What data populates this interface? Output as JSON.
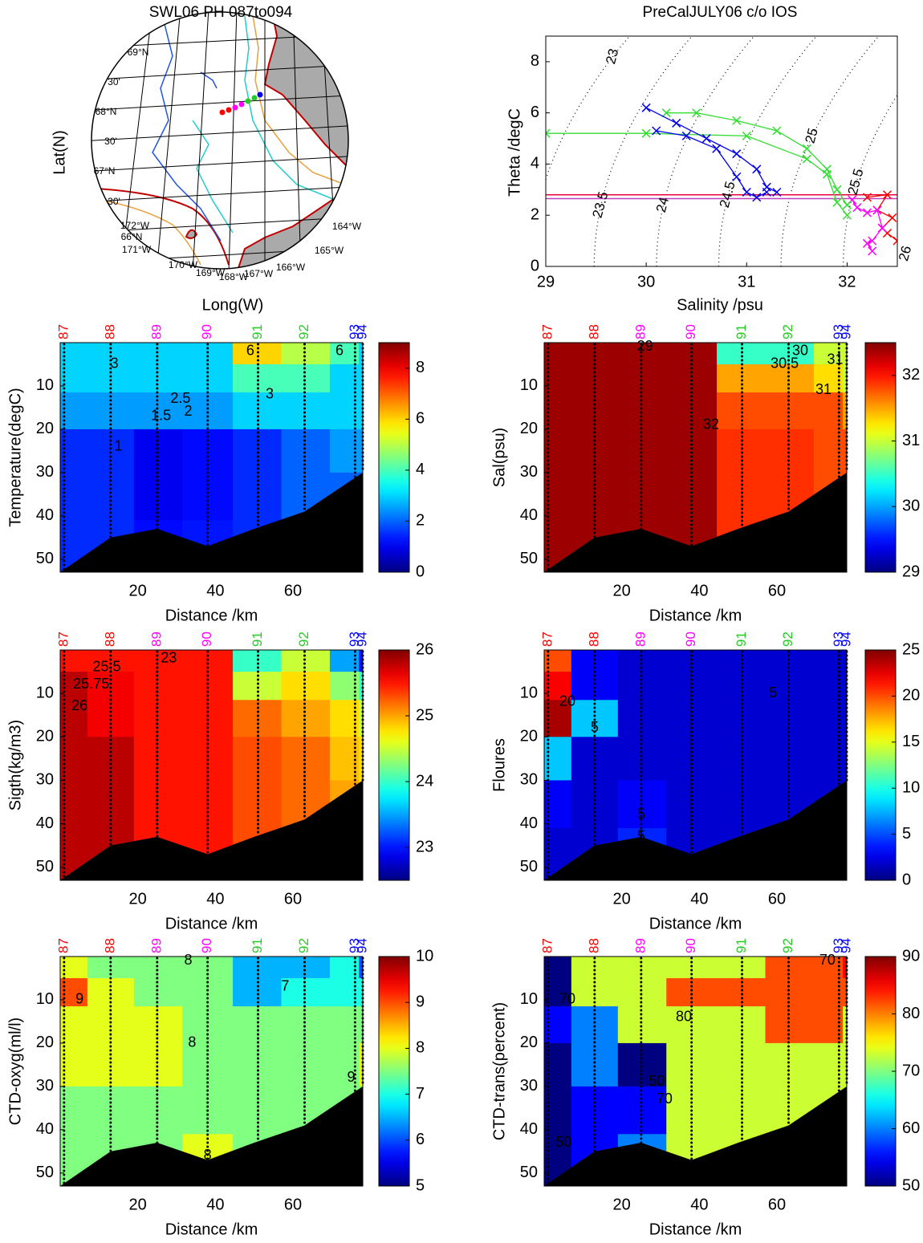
{
  "chart_data": [
    {
      "type": "map",
      "title": "SWL06 PH 087to094",
      "xlabel": "Long(W)",
      "ylabel": "Lat(N)",
      "lat_labels": [
        "69°N",
        "30'",
        "68°N",
        "30'",
        "67°N",
        "30'",
        "66°N"
      ],
      "lon_labels": [
        "172°W",
        "171°W",
        "170°W",
        "169°W",
        "168°W",
        "167°W",
        "166°W",
        "165°W",
        "164°W"
      ]
    },
    {
      "type": "line",
      "title": "PreCalJULY06 c/o IOS",
      "xlabel": "Salinity /psu",
      "ylabel": "Theta /degC",
      "xlim": [
        29,
        32.5
      ],
      "ylim": [
        0,
        9
      ],
      "xticks": [
        29,
        30,
        31,
        32
      ],
      "yticks": [
        0,
        2,
        4,
        6,
        8
      ],
      "isopycnals": [
        23,
        23.5,
        24,
        24.5,
        25,
        25.5,
        26
      ],
      "hlines": [
        {
          "y": 2.8,
          "color": "#e8003c"
        },
        {
          "y": 2.65,
          "color": "#c040c0"
        }
      ],
      "series": [
        {
          "color": "#ff0000",
          "x": [
            32.2,
            32.4,
            32.3,
            32.45,
            32.35,
            32.4,
            32.5
          ],
          "y": [
            2.7,
            2.8,
            2.2,
            1.9,
            1.5,
            1.3,
            1.0
          ]
        },
        {
          "color": "#ff00ff",
          "x": [
            32.05,
            32.1,
            32.2,
            32.3,
            32.35,
            32.25,
            32.2,
            32.25
          ],
          "y": [
            2.6,
            2.3,
            2.1,
            2.2,
            1.5,
            1.0,
            0.9,
            0.6
          ]
        },
        {
          "color": "#33dd33",
          "x": [
            29.0,
            30.0,
            31.0,
            31.6,
            31.8,
            31.9,
            32.0
          ],
          "y": [
            5.2,
            5.2,
            5.1,
            4.2,
            3.6,
            2.5,
            2.0
          ]
        },
        {
          "color": "#33dd33",
          "x": [
            30.2,
            30.5,
            30.9,
            31.3,
            31.6,
            31.8,
            31.9,
            32.0
          ],
          "y": [
            6.0,
            6.0,
            5.7,
            5.3,
            4.6,
            3.8,
            3.0,
            2.4
          ]
        },
        {
          "color": "#0000ee",
          "x": [
            30.0,
            30.3,
            30.6,
            30.9,
            31.1,
            31.2,
            31.3
          ],
          "y": [
            6.2,
            5.6,
            5.0,
            4.4,
            3.8,
            3.1,
            2.9
          ]
        },
        {
          "color": "#0000ee",
          "x": [
            30.1,
            30.4,
            30.7,
            30.9,
            31.0,
            31.1,
            31.2
          ],
          "y": [
            5.3,
            5.1,
            4.6,
            3.5,
            2.9,
            2.7,
            2.9
          ]
        }
      ]
    },
    {
      "type": "contour",
      "ylabel": "Temperature(degC)",
      "xlabel": "Distance /km",
      "xlim": [
        0,
        78
      ],
      "ylim": [
        53,
        0
      ],
      "xticks": [
        20,
        40,
        60
      ],
      "yticks": [
        10,
        20,
        30,
        40,
        50
      ],
      "stations": {
        "labels": [
          "87",
          "88",
          "89",
          "90",
          "91",
          "92",
          "93",
          "94"
        ],
        "colors": [
          "#ff0000",
          "#ff0000",
          "#ff00ff",
          "#ff00ff",
          "#22cc22",
          "#22cc22",
          "#0000ff",
          "#0000ff"
        ],
        "x": [
          1,
          13,
          25,
          38,
          51,
          63,
          76,
          78
        ]
      },
      "depths": [
        2,
        8,
        15,
        25,
        35,
        47
      ],
      "values": [
        [
          3,
          3,
          3,
          3,
          6,
          5,
          4,
          3
        ],
        [
          3,
          3,
          3,
          3,
          4,
          4,
          3,
          3
        ],
        [
          2.5,
          2.5,
          2.5,
          2.5,
          3,
          3,
          3,
          3
        ],
        [
          1.5,
          1.5,
          1,
          1.2,
          1.5,
          2,
          2.5,
          2.5
        ],
        [
          1.5,
          1.5,
          1,
          1.2,
          1.5,
          2,
          2,
          2
        ],
        [
          1.5,
          1.5,
          1.2,
          1.3,
          1.5,
          1.8,
          2,
          2
        ]
      ],
      "clim": [
        0,
        9
      ],
      "cticks": [
        0,
        2,
        4,
        6,
        8
      ],
      "contour_labels": [
        {
          "value": 6,
          "x": 49,
          "depth": 2
        },
        {
          "value": 3,
          "x": 14,
          "depth": 5
        },
        {
          "value": 2.5,
          "x": 31,
          "depth": 13
        },
        {
          "value": 2,
          "x": 33,
          "depth": 16
        },
        {
          "value": 1.5,
          "x": 26,
          "depth": 17
        },
        {
          "value": 1,
          "x": 15,
          "depth": 24
        },
        {
          "value": 3,
          "x": 54,
          "depth": 12
        },
        {
          "value": 6,
          "x": 72,
          "depth": 2
        }
      ],
      "bottom": {
        "x": [
          0,
          13,
          25,
          38,
          50,
          63,
          78
        ],
        "depth": [
          53,
          45,
          43,
          47,
          43,
          39,
          30
        ]
      }
    },
    {
      "type": "contour",
      "ylabel": "Sal(psu)",
      "xlabel": "Distance /km",
      "xlim": [
        0,
        78
      ],
      "ylim": [
        53,
        0
      ],
      "xticks": [
        20,
        40,
        60
      ],
      "yticks": [
        10,
        20,
        30,
        40,
        50
      ],
      "stations": {
        "labels": [
          "87",
          "88",
          "89",
          "90",
          "91",
          "92",
          "93",
          "94"
        ],
        "colors": [
          "#ff0000",
          "#ff0000",
          "#ff00ff",
          "#ff00ff",
          "#22cc22",
          "#22cc22",
          "#0000ff",
          "#0000ff"
        ],
        "x": [
          1,
          13,
          25,
          38,
          51,
          63,
          76,
          78
        ]
      },
      "depths": [
        2,
        8,
        15,
        25,
        35,
        47
      ],
      "values": [
        [
          32.4,
          32.4,
          32.4,
          32.4,
          30.5,
          30.5,
          31,
          31
        ],
        [
          32.4,
          32.4,
          32.4,
          32.4,
          31.5,
          31.5,
          31.3,
          31
        ],
        [
          32.4,
          32.4,
          32.4,
          32.4,
          31.8,
          31.8,
          31.8,
          31.5
        ],
        [
          32.4,
          32.4,
          32.4,
          32.4,
          31.9,
          31.9,
          31.8,
          31.8
        ],
        [
          32.4,
          32.4,
          32.4,
          32.4,
          31.9,
          31.9,
          31.8,
          31.8
        ],
        [
          32.4,
          32.4,
          32.4,
          32.4,
          31.9,
          31.9,
          31.8,
          31.8
        ]
      ],
      "clim": [
        29,
        32.5
      ],
      "cticks": [
        29,
        30,
        31,
        32
      ],
      "contour_labels": [
        {
          "value": 29,
          "x": 26,
          "depth": 1
        },
        {
          "value": 30,
          "x": 66,
          "depth": 2
        },
        {
          "value": 30.5,
          "x": 62,
          "depth": 5
        },
        {
          "value": 31,
          "x": 75,
          "depth": 4
        },
        {
          "value": 31,
          "x": 72,
          "depth": 11
        },
        {
          "value": 32,
          "x": 43,
          "depth": 19
        }
      ],
      "bottom": {
        "x": [
          0,
          13,
          25,
          38,
          50,
          63,
          78
        ],
        "depth": [
          53,
          45,
          43,
          47,
          43,
          39,
          30
        ]
      }
    },
    {
      "type": "contour",
      "ylabel": "Sigth(kg/m3)",
      "xlabel": "Distance /km",
      "xlim": [
        0,
        78
      ],
      "ylim": [
        53,
        0
      ],
      "xticks": [
        20,
        40,
        60
      ],
      "yticks": [
        10,
        20,
        30,
        40,
        50
      ],
      "stations": {
        "labels": [
          "87",
          "88",
          "89",
          "90",
          "91",
          "92",
          "93",
          "94"
        ],
        "colors": [
          "#ff0000",
          "#ff0000",
          "#ff00ff",
          "#ff00ff",
          "#22cc22",
          "#22cc22",
          "#0000ff",
          "#0000ff"
        ],
        "x": [
          1,
          13,
          25,
          38,
          51,
          63,
          76,
          78
        ]
      },
      "depths": [
        2,
        8,
        15,
        25,
        35,
        47
      ],
      "values": [
        [
          25.5,
          25.5,
          25.5,
          25.5,
          24,
          24.5,
          23.5,
          23
        ],
        [
          25.8,
          25.6,
          25.5,
          25.5,
          24.5,
          24.8,
          24.3,
          24
        ],
        [
          25.8,
          25.6,
          25.5,
          25.5,
          25.2,
          25,
          24.8,
          24.5
        ],
        [
          25.8,
          25.8,
          25.5,
          25.5,
          25.3,
          25.2,
          24.9,
          24.8
        ],
        [
          25.8,
          25.8,
          25.5,
          25.5,
          25.3,
          25.2,
          25,
          24.8
        ],
        [
          25.8,
          25.8,
          25.5,
          25.5,
          25.3,
          25.2,
          25,
          24.8
        ]
      ],
      "clim": [
        22.5,
        26
      ],
      "cticks": [
        23,
        24,
        25,
        26
      ],
      "contour_labels": [
        {
          "value": 25.5,
          "x": 12,
          "depth": 4
        },
        {
          "value": 23,
          "x": 28,
          "depth": 2
        },
        {
          "value": 25.75,
          "x": 8,
          "depth": 8
        },
        {
          "value": 26,
          "x": 5,
          "depth": 13
        }
      ],
      "bottom": {
        "x": [
          0,
          13,
          25,
          38,
          50,
          63,
          78
        ],
        "depth": [
          53,
          45,
          43,
          47,
          43,
          39,
          30
        ]
      }
    },
    {
      "type": "contour",
      "ylabel": "Floures",
      "xlabel": "Distance /km",
      "xlim": [
        0,
        78
      ],
      "ylim": [
        53,
        0
      ],
      "xticks": [
        20,
        40,
        60
      ],
      "yticks": [
        10,
        20,
        30,
        40,
        50
      ],
      "stations": {
        "labels": [
          "87",
          "88",
          "89",
          "90",
          "91",
          "92",
          "93",
          "94"
        ],
        "colors": [
          "#ff0000",
          "#ff0000",
          "#ff00ff",
          "#ff00ff",
          "#22cc22",
          "#22cc22",
          "#0000ff",
          "#0000ff"
        ],
        "x": [
          1,
          13,
          25,
          38,
          51,
          63,
          76,
          78
        ]
      },
      "depths": [
        2,
        8,
        15,
        25,
        35,
        47
      ],
      "values": [
        [
          20,
          3,
          2,
          2,
          2,
          2,
          2,
          2
        ],
        [
          22,
          3,
          2,
          2,
          2,
          2,
          2,
          2
        ],
        [
          24,
          8,
          2,
          2,
          2,
          2,
          2,
          2
        ],
        [
          8,
          2,
          2,
          2,
          2,
          2,
          2,
          2
        ],
        [
          3,
          2,
          3,
          2,
          2,
          2,
          2,
          2
        ],
        [
          2,
          2,
          4,
          2,
          2,
          2,
          2,
          2
        ]
      ],
      "clim": [
        0,
        25
      ],
      "cticks": [
        0,
        5,
        10,
        15,
        20,
        25
      ],
      "contour_labels": [
        {
          "value": 20,
          "x": 6,
          "depth": 12
        },
        {
          "value": 5,
          "x": 13,
          "depth": 18
        },
        {
          "value": 5,
          "x": 59,
          "depth": 10
        },
        {
          "value": 5,
          "x": 25,
          "depth": 38
        },
        {
          "value": 5,
          "x": 25,
          "depth": 43
        }
      ],
      "bottom": {
        "x": [
          0,
          13,
          25,
          38,
          50,
          63,
          78
        ],
        "depth": [
          53,
          45,
          43,
          47,
          43,
          39,
          30
        ]
      }
    },
    {
      "type": "contour",
      "ylabel": "CTD-oxyg(ml/l)",
      "xlabel": "Distance /km",
      "xlim": [
        0,
        78
      ],
      "ylim": [
        53,
        0
      ],
      "xticks": [
        20,
        40,
        60
      ],
      "yticks": [
        10,
        20,
        30,
        40,
        50
      ],
      "stations": {
        "labels": [
          "87",
          "88",
          "89",
          "90",
          "91",
          "92",
          "93",
          "94"
        ],
        "colors": [
          "#ff0000",
          "#ff0000",
          "#ff00ff",
          "#ff00ff",
          "#22cc22",
          "#22cc22",
          "#0000ff",
          "#0000ff"
        ],
        "x": [
          1,
          13,
          25,
          38,
          51,
          63,
          76,
          78
        ]
      },
      "depths": [
        2,
        8,
        15,
        25,
        35,
        47
      ],
      "values": [
        [
          8,
          7.5,
          7.5,
          7.5,
          6.5,
          6.5,
          7,
          6
        ],
        [
          9,
          8,
          7.5,
          7.5,
          6.5,
          7,
          7,
          7
        ],
        [
          8,
          8,
          8,
          7.5,
          7.5,
          7.5,
          7.5,
          7.5
        ],
        [
          8,
          8,
          8,
          7.5,
          7.5,
          7.5,
          7.5,
          8
        ],
        [
          7.5,
          7.5,
          7.5,
          7.5,
          7.5,
          7.5,
          7.5,
          7.5
        ],
        [
          7.5,
          7.5,
          7.5,
          8,
          7.5,
          7.5,
          7.5,
          7.5
        ]
      ],
      "clim": [
        5,
        10
      ],
      "cticks": [
        5,
        6,
        7,
        8,
        9,
        10
      ],
      "contour_labels": [
        {
          "value": 8,
          "x": 33,
          "depth": 1
        },
        {
          "value": 9,
          "x": 5,
          "depth": 10
        },
        {
          "value": 7,
          "x": 58,
          "depth": 7
        },
        {
          "value": 8,
          "x": 34,
          "depth": 20
        },
        {
          "value": 8,
          "x": 38,
          "depth": 46
        },
        {
          "value": 9,
          "x": 75,
          "depth": 28
        }
      ],
      "bottom": {
        "x": [
          0,
          13,
          25,
          38,
          50,
          63,
          78
        ],
        "depth": [
          53,
          45,
          43,
          47,
          43,
          39,
          30
        ]
      }
    },
    {
      "type": "contour",
      "ylabel": "CTD-trans(percent)",
      "xlabel": "Distance /km",
      "xlim": [
        0,
        78
      ],
      "ylim": [
        53,
        0
      ],
      "xticks": [
        20,
        40,
        60
      ],
      "yticks": [
        10,
        20,
        30,
        40,
        50
      ],
      "stations": {
        "labels": [
          "87",
          "88",
          "89",
          "90",
          "91",
          "92",
          "93",
          "94"
        ],
        "colors": [
          "#ff0000",
          "#ff0000",
          "#ff00ff",
          "#ff00ff",
          "#22cc22",
          "#22cc22",
          "#0000ff",
          "#0000ff"
        ],
        "x": [
          1,
          13,
          25,
          38,
          51,
          63,
          76,
          78
        ]
      },
      "depths": [
        2,
        8,
        15,
        25,
        35,
        47
      ],
      "values": [
        [
          50,
          73,
          73,
          73,
          73,
          82,
          82,
          85
        ],
        [
          50,
          73,
          73,
          82,
          82,
          82,
          82,
          82
        ],
        [
          55,
          60,
          73,
          73,
          73,
          82,
          82,
          73
        ],
        [
          50,
          60,
          50,
          73,
          73,
          73,
          73,
          73
        ],
        [
          50,
          55,
          55,
          73,
          73,
          73,
          73,
          73
        ],
        [
          50,
          55,
          60,
          73,
          73,
          73,
          73,
          73
        ]
      ],
      "clim": [
        50,
        90
      ],
      "cticks": [
        50,
        60,
        70,
        80,
        90
      ],
      "contour_labels": [
        {
          "value": 70,
          "x": 6,
          "depth": 10
        },
        {
          "value": 80,
          "x": 36,
          "depth": 14
        },
        {
          "value": 70,
          "x": 73,
          "depth": 1
        },
        {
          "value": 50,
          "x": 29,
          "depth": 29
        },
        {
          "value": 70,
          "x": 31,
          "depth": 33
        },
        {
          "value": 50,
          "x": 5,
          "depth": 43
        }
      ],
      "bottom": {
        "x": [
          0,
          13,
          25,
          38,
          50,
          63,
          78
        ],
        "depth": [
          53,
          45,
          43,
          47,
          43,
          39,
          30
        ]
      }
    }
  ]
}
